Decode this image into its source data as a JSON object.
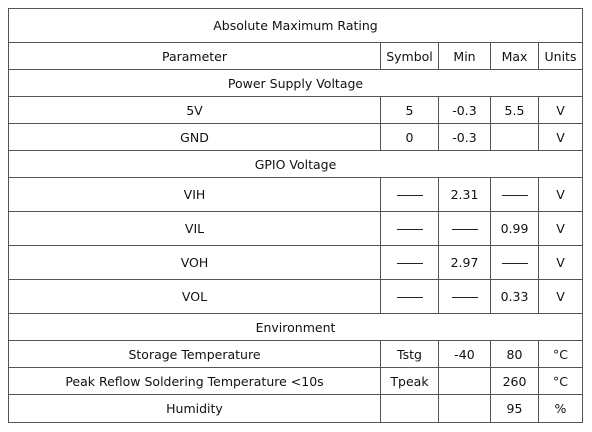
{
  "title": "Absolute Maximum Rating",
  "headers": {
    "parameter": "Parameter",
    "symbol": "Symbol",
    "min": "Min",
    "max": "Max",
    "units": "Units"
  },
  "sections": {
    "power": {
      "label": "Power Supply Voltage",
      "rows": [
        {
          "parameter": "5V",
          "symbol": "5",
          "min": "-0.3",
          "max": "5.5",
          "units": "V"
        },
        {
          "parameter": "GND",
          "symbol": "0",
          "min": "-0.3",
          "max": "",
          "units": "V"
        }
      ]
    },
    "gpio": {
      "label": "GPIO Voltage",
      "rows": [
        {
          "parameter": "VIH",
          "symbol": "—",
          "min": "2.31",
          "max": "—",
          "units": "V"
        },
        {
          "parameter": "VIL",
          "symbol": "—",
          "min": "—",
          "max": "0.99",
          "units": "V"
        },
        {
          "parameter": "VOH",
          "symbol": "—",
          "min": "2.97",
          "max": "—",
          "units": "V"
        },
        {
          "parameter": "VOL",
          "symbol": "—",
          "min": "—",
          "max": "0.33",
          "units": "V"
        }
      ]
    },
    "env": {
      "label": "Environment",
      "rows": [
        {
          "parameter": "Storage Temperature",
          "symbol": "Tstg",
          "min": "-40",
          "max": "80",
          "units": "°C"
        },
        {
          "parameter": "Peak Reflow Soldering Temperature <10s",
          "symbol": "Tpeak",
          "min": "",
          "max": "260",
          "units": "°C"
        },
        {
          "parameter": "Humidity",
          "symbol": "",
          "min": "",
          "max": "95",
          "units": "%"
        }
      ]
    }
  }
}
